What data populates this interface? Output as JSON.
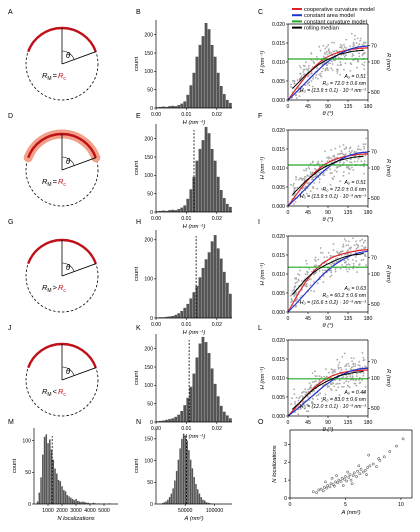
{
  "colors": {
    "coop": "#e0202a",
    "area": "#2233cc",
    "curv": "#22aa22",
    "median": "#000000",
    "bars": "#555555",
    "scatter": "#aaaaaa",
    "cap": "#c0101a",
    "halo": "#f2a088"
  },
  "legend": {
    "coop": "cooperative curvature model",
    "area": "constant area model",
    "curv": "constant curvature model",
    "median": "rolling median"
  },
  "panel_letters": [
    "A",
    "B",
    "C",
    "D",
    "E",
    "F",
    "G",
    "H",
    "I",
    "J",
    "K",
    "L",
    "M",
    "N",
    "O"
  ],
  "diagram_labels": {
    "theta": "θ",
    "rm": "R",
    "rm_sub": "M",
    "rc": "R",
    "rc_sub": "c",
    "ops": [
      "=",
      "=",
      ">",
      "<"
    ]
  },
  "axis": {
    "count": "count",
    "H": "H (nm⁻¹)",
    "theta": "θ (°)",
    "R": "R (nm)",
    "N": "N localizations",
    "A": "A (nm²)"
  },
  "ticks": {
    "H_hist": [
      "0.00",
      "0.01",
      "0.02"
    ],
    "count_small": [
      "0",
      "50",
      "100",
      "150",
      "200"
    ],
    "count_big": [
      "0",
      "100",
      "200"
    ],
    "H_scatter": [
      "0.000",
      "0.005",
      "0.010",
      "0.015",
      "0.020"
    ],
    "theta": [
      "0",
      "45",
      "90",
      "135",
      "180"
    ],
    "R_right": [
      "70",
      "100",
      "500"
    ],
    "N_hist": [
      "1000",
      "2000",
      "3000",
      "4000",
      "5000"
    ],
    "count_M": [
      "0",
      "50",
      "100"
    ],
    "A_hist": [
      "50000",
      "100000"
    ],
    "count_N": [
      "0",
      "50",
      "100",
      "150"
    ],
    "A_O": [
      "0",
      "5",
      "10"
    ],
    "N_O": [
      "0",
      "1",
      "2",
      "3"
    ],
    "O_x_suffix": "(nm²)",
    "O_y_suffix": "localizations"
  },
  "fits": [
    {
      "rows": [
        "A₀ = 0.51",
        "R₀ = 72.0 ± 0.6 nm",
        "H₀ = (13.9 ± 0.1) · 10⁻³ nm⁻¹"
      ]
    },
    {
      "rows": [
        "A₀ = 0.51",
        "R₀ = 72.0 ± 0.6 nm",
        "H₀ = (13.9 ± 0.1) · 10⁻³ nm⁻¹"
      ]
    },
    {
      "rows": [
        "A₀ = 0.63",
        "R₀ = 60.2 ± 0.6 nm",
        "H₀ = (16.6 ± 0.2) · 10⁻³ nm⁻¹"
      ]
    },
    {
      "rows": [
        "A₀ = 0.44",
        "R₀ = 83.0 ± 0.6 nm",
        "H₀ = (12.0 ± 0.1) · 10⁻³ nm⁻¹"
      ]
    }
  ],
  "chart_data": [
    {
      "panel": "B",
      "type": "bar",
      "xlabel": "H (nm⁻¹)",
      "ylabel": "count",
      "xlim": [
        0,
        0.025
      ],
      "ylim": [
        0,
        240
      ],
      "bin_start": 0.0,
      "bin_width": 0.001,
      "values": [
        2,
        3,
        4,
        3,
        5,
        6,
        5,
        8,
        12,
        18,
        36,
        62,
        96,
        140,
        172,
        196,
        232,
        215,
        172,
        140,
        96,
        60,
        38,
        22,
        14,
        8,
        6,
        4,
        3,
        2,
        2,
        1
      ]
    },
    {
      "panel": "E",
      "type": "bar",
      "xlabel": "H (nm⁻¹)",
      "ylabel": "count",
      "xlim": [
        0,
        0.025
      ],
      "ylim": [
        0,
        240
      ],
      "bin_start": 0.0,
      "bin_width": 0.001,
      "values": [
        2,
        3,
        4,
        3,
        5,
        6,
        5,
        8,
        12,
        18,
        36,
        62,
        96,
        140,
        172,
        196,
        232,
        215,
        172,
        140,
        96,
        60,
        38,
        22,
        14,
        8,
        6,
        4,
        3,
        2,
        2,
        1
      ]
    },
    {
      "panel": "H",
      "type": "bar",
      "xlabel": "H (nm⁻¹)",
      "ylabel": "count",
      "xlim": [
        0,
        0.025
      ],
      "ylim": [
        0,
        225
      ],
      "bin_start": 0.0,
      "bin_width": 0.001,
      "values": [
        1,
        2,
        2,
        3,
        4,
        5,
        8,
        12,
        18,
        26,
        36,
        50,
        66,
        82,
        104,
        128,
        150,
        168,
        196,
        212,
        178,
        152,
        118,
        90,
        62,
        42,
        28,
        18,
        12,
        6,
        4,
        2
      ]
    },
    {
      "panel": "K",
      "type": "bar",
      "xlabel": "H (nm⁻¹)",
      "ylabel": "count",
      "xlim": [
        0,
        0.025
      ],
      "ylim": [
        0,
        240
      ],
      "bin_start": 0.0,
      "bin_width": 0.001,
      "values": [
        2,
        3,
        4,
        6,
        8,
        10,
        14,
        20,
        30,
        46,
        66,
        96,
        132,
        176,
        214,
        232,
        218,
        188,
        146,
        104,
        70,
        44,
        28,
        18,
        10,
        6,
        4,
        3,
        2,
        1,
        1,
        1
      ]
    },
    {
      "panel": "M",
      "type": "bar",
      "xlabel": "N localizations",
      "ylabel": "count",
      "xlim": [
        0,
        6000
      ],
      "ylim": [
        0,
        120
      ],
      "bin_start": 200,
      "bin_width": 125,
      "values": [
        4,
        18,
        42,
        78,
        106,
        110,
        96,
        102,
        86,
        70,
        56,
        48,
        38,
        36,
        28,
        22,
        20,
        14,
        12,
        10,
        8,
        6,
        8,
        5,
        4,
        3,
        4,
        3,
        2,
        2,
        1,
        1,
        2,
        1,
        0,
        1,
        0,
        0,
        1,
        0,
        0,
        1
      ]
    },
    {
      "panel": "N",
      "type": "bar",
      "xlabel": "A (nm²)",
      "ylabel": "count",
      "xlim": [
        0,
        130000
      ],
      "ylim": [
        0,
        175
      ],
      "bin_start": 10000,
      "bin_width": 3000,
      "values": [
        2,
        4,
        6,
        10,
        16,
        24,
        36,
        54,
        76,
        102,
        128,
        150,
        162,
        158,
        146,
        124,
        102,
        82,
        62,
        46,
        34,
        24,
        16,
        10,
        8,
        4,
        3,
        2,
        1,
        1
      ]
    },
    {
      "panel": "C",
      "type": "line",
      "xlabel": "θ (°)",
      "ylabel": "H (nm⁻¹)",
      "xlim": [
        0,
        180
      ],
      "ylim": [
        0,
        0.02
      ],
      "series": [
        {
          "name": "cooperative curvature model",
          "x": [
            0,
            20,
            40,
            60,
            80,
            100,
            120,
            140,
            160,
            180
          ],
          "y": [
            0.0,
            0.0032,
            0.0062,
            0.0088,
            0.0108,
            0.012,
            0.0128,
            0.0133,
            0.0136,
            0.0137
          ]
        },
        {
          "name": "constant area model",
          "x": [
            0,
            20,
            40,
            60,
            80,
            100,
            120,
            140,
            160,
            180
          ],
          "y": [
            0.0,
            0.0022,
            0.0046,
            0.007,
            0.0092,
            0.011,
            0.0124,
            0.0134,
            0.014,
            0.0142
          ]
        },
        {
          "name": "constant curvature model",
          "x": [
            0,
            180
          ],
          "y": [
            0.0108,
            0.0108
          ]
        },
        {
          "name": "rolling median",
          "x": [
            10,
            25,
            40,
            55,
            70,
            85,
            100,
            115,
            130,
            145,
            160,
            170
          ],
          "y": [
            0.003,
            0.0048,
            0.0066,
            0.008,
            0.0094,
            0.0104,
            0.0112,
            0.012,
            0.0124,
            0.0128,
            0.013,
            0.0131
          ]
        }
      ]
    },
    {
      "panel": "F",
      "type": "line",
      "xlabel": "θ (°)",
      "ylabel": "H (nm⁻¹)",
      "xlim": [
        0,
        180
      ],
      "ylim": [
        0,
        0.02
      ],
      "series": [
        {
          "name": "cooperative curvature model",
          "x": [
            0,
            20,
            40,
            60,
            80,
            100,
            120,
            140,
            160,
            180
          ],
          "y": [
            0.0,
            0.0032,
            0.0062,
            0.0088,
            0.0108,
            0.012,
            0.0128,
            0.0133,
            0.0136,
            0.0137
          ]
        },
        {
          "name": "constant area model",
          "x": [
            0,
            20,
            40,
            60,
            80,
            100,
            120,
            140,
            160,
            180
          ],
          "y": [
            0.0,
            0.0022,
            0.0046,
            0.007,
            0.0092,
            0.011,
            0.0124,
            0.0134,
            0.014,
            0.0142
          ]
        },
        {
          "name": "constant curvature model",
          "x": [
            0,
            180
          ],
          "y": [
            0.0108,
            0.0108
          ]
        },
        {
          "name": "rolling median",
          "x": [
            10,
            25,
            40,
            55,
            70,
            85,
            100,
            115,
            130,
            145,
            160,
            170
          ],
          "y": [
            0.003,
            0.0048,
            0.0066,
            0.008,
            0.0094,
            0.0104,
            0.0112,
            0.012,
            0.0124,
            0.0128,
            0.013,
            0.0131
          ]
        }
      ]
    },
    {
      "panel": "I",
      "type": "line",
      "xlabel": "θ (°)",
      "ylabel": "H (nm⁻¹)",
      "xlim": [
        0,
        180
      ],
      "ylim": [
        0,
        0.02
      ],
      "series": [
        {
          "name": "cooperative curvature model",
          "x": [
            0,
            20,
            40,
            60,
            80,
            100,
            120,
            140,
            160,
            180
          ],
          "y": [
            0.0,
            0.0042,
            0.008,
            0.011,
            0.013,
            0.0144,
            0.0152,
            0.0158,
            0.0162,
            0.0164
          ]
        },
        {
          "name": "constant area model",
          "x": [
            0,
            20,
            40,
            60,
            80,
            100,
            120,
            140,
            160,
            180
          ],
          "y": [
            0.0,
            0.0024,
            0.005,
            0.0076,
            0.01,
            0.012,
            0.0136,
            0.0148,
            0.0156,
            0.016
          ]
        },
        {
          "name": "constant curvature model",
          "x": [
            0,
            180
          ],
          "y": [
            0.0118,
            0.0118
          ]
        },
        {
          "name": "rolling median",
          "x": [
            10,
            25,
            40,
            55,
            70,
            85,
            100,
            115,
            130,
            145,
            160,
            170
          ],
          "y": [
            0.0046,
            0.0066,
            0.0086,
            0.0102,
            0.0114,
            0.0124,
            0.0132,
            0.014,
            0.0146,
            0.015,
            0.0152,
            0.0154
          ]
        }
      ]
    },
    {
      "panel": "L",
      "type": "line",
      "xlabel": "θ (°)",
      "ylabel": "H (nm⁻¹)",
      "xlim": [
        0,
        180
      ],
      "ylim": [
        0,
        0.02
      ],
      "series": [
        {
          "name": "cooperative curvature model",
          "x": [
            0,
            20,
            40,
            60,
            80,
            100,
            120,
            140,
            160,
            180
          ],
          "y": [
            0.0,
            0.0026,
            0.0052,
            0.0076,
            0.0094,
            0.0106,
            0.0114,
            0.0118,
            0.012,
            0.0121
          ]
        },
        {
          "name": "constant area model",
          "x": [
            0,
            20,
            40,
            60,
            80,
            100,
            120,
            140,
            160,
            180
          ],
          "y": [
            0.0,
            0.0018,
            0.0038,
            0.0058,
            0.0078,
            0.0094,
            0.0108,
            0.0118,
            0.0124,
            0.0126
          ]
        },
        {
          "name": "constant curvature model",
          "x": [
            0,
            180
          ],
          "y": [
            0.0098,
            0.0098
          ]
        },
        {
          "name": "rolling median",
          "x": [
            10,
            25,
            40,
            55,
            70,
            85,
            100,
            115,
            130,
            145,
            160,
            170
          ],
          "y": [
            0.0018,
            0.0034,
            0.0052,
            0.0068,
            0.008,
            0.009,
            0.0098,
            0.0106,
            0.011,
            0.0114,
            0.0116,
            0.0117
          ]
        }
      ]
    },
    {
      "panel": "O",
      "type": "scatter",
      "xlabel": "A (nm²)",
      "ylabel": "N localizations",
      "xlim": [
        0,
        11
      ],
      "ylim": [
        0,
        3.8
      ],
      "x": [
        2.1,
        2.4,
        2.6,
        2.8,
        3.0,
        3.1,
        3.3,
        3.4,
        3.6,
        3.7,
        3.9,
        4.0,
        4.1,
        4.3,
        4.4,
        4.6,
        4.7,
        4.9,
        5.0,
        5.1,
        5.3,
        5.4,
        5.5,
        5.7,
        5.8,
        6.0,
        6.1,
        6.3,
        6.4,
        6.6,
        6.8,
        7.0,
        7.2,
        7.5,
        7.8,
        8.1,
        8.5,
        9.0,
        9.6,
        10.2,
        3.2,
        4.2,
        5.2,
        6.2,
        7.1,
        8.0,
        4.8,
        5.6,
        3.8,
        6.9
      ],
      "y": [
        0.35,
        0.3,
        0.45,
        0.5,
        0.4,
        0.6,
        0.55,
        0.7,
        0.62,
        0.8,
        0.75,
        0.66,
        0.9,
        0.85,
        1.0,
        0.92,
        1.1,
        1.05,
        1.2,
        0.95,
        1.15,
        1.3,
        1.0,
        1.25,
        1.4,
        1.2,
        1.5,
        1.35,
        1.6,
        1.45,
        1.55,
        1.7,
        1.8,
        1.9,
        1.75,
        2.1,
        2.3,
        2.6,
        2.9,
        3.3,
        0.9,
        1.25,
        1.45,
        1.8,
        2.4,
        2.2,
        0.7,
        0.8,
        1.1,
        1.3
      ]
    }
  ]
}
